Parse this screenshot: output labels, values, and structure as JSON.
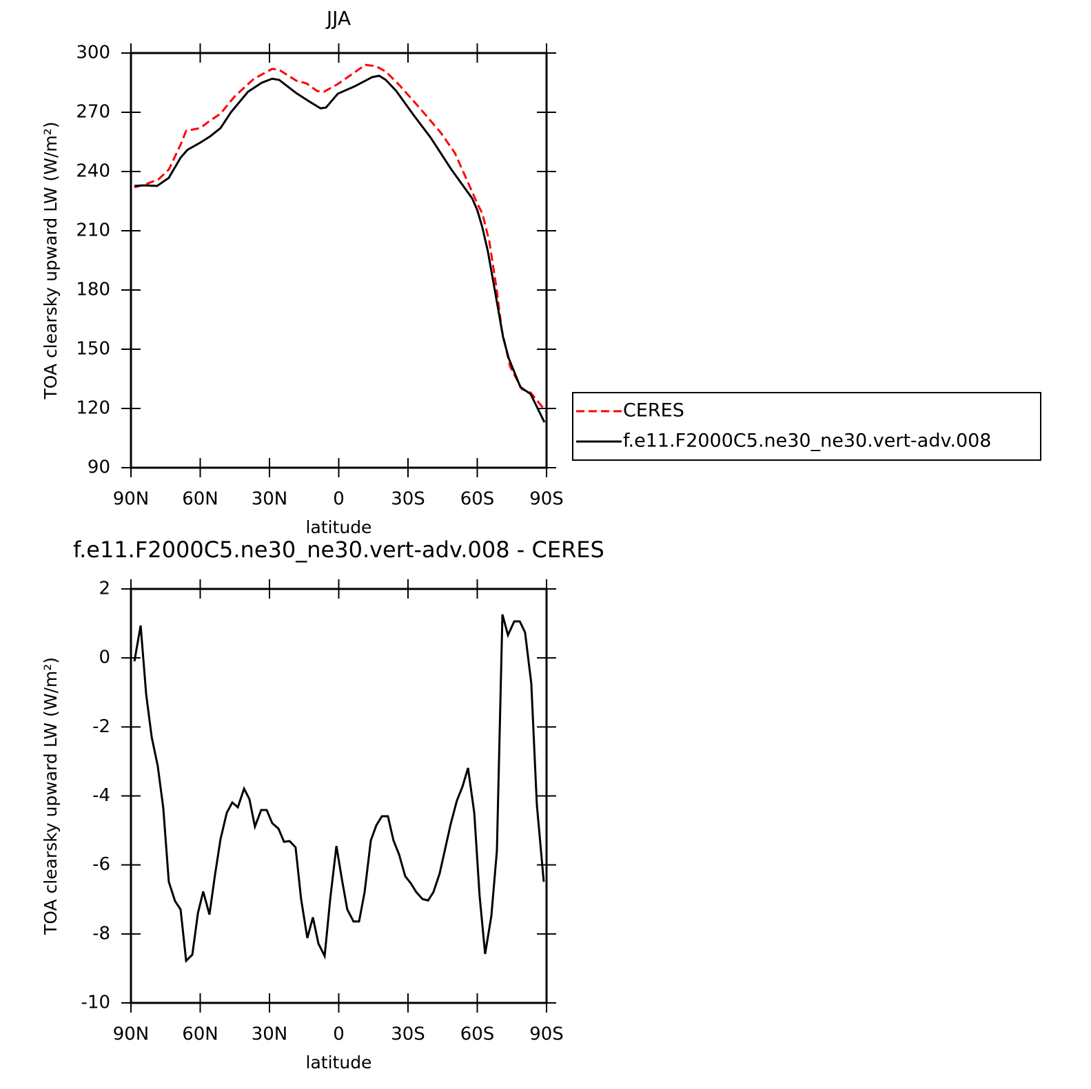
{
  "chart_data": [
    {
      "type": "line",
      "title": "JJA",
      "xlabel": "latitude",
      "ylabel": "TOA clearsky upward LW (W/m²)",
      "xlim": [
        90,
        -90
      ],
      "xticks": [
        {
          "value": 90,
          "label": "90N"
        },
        {
          "value": 60,
          "label": "60N"
        },
        {
          "value": 30,
          "label": "30N"
        },
        0,
        {
          "value": -30,
          "label": "30S"
        },
        {
          "value": -60,
          "label": "60S"
        },
        {
          "value": -90,
          "label": "90S"
        }
      ],
      "ylim": [
        90,
        300
      ],
      "yticks": [
        90,
        120,
        150,
        180,
        210,
        240,
        270,
        300
      ],
      "legend": "right",
      "series": [
        {
          "name": "CERES",
          "color": "#ff0000",
          "line_style": "dashed",
          "x": [
            88.5,
            84,
            78.1,
            73.6,
            68.5,
            66.1,
            60,
            55.7,
            51.2,
            45.1,
            36.7,
            28.8,
            25.8,
            18.4,
            13.9,
            9.4,
            6.4,
            0.4,
            -11.5,
            -16,
            -20.4,
            -26.4,
            -35.4,
            -44.3,
            -50.3,
            -60.1,
            -62.2,
            -65.2,
            -68.2,
            -70.6,
            -74.2,
            -79.3,
            -83.1,
            -89.7
          ],
          "values": [
            232,
            233.4,
            236,
            241,
            253.6,
            260.6,
            262,
            265.8,
            269.3,
            278,
            287,
            292,
            291.5,
            286,
            284.6,
            280.8,
            280.4,
            284.3,
            294,
            293.4,
            290.6,
            283.6,
            271.7,
            259.5,
            249.4,
            223.6,
            218.7,
            204.8,
            182,
            160,
            141.3,
            129.8,
            128,
            118.6
          ]
        },
        {
          "name": "f.e11.F2000C5.ne30_ne30.vert-adv.008",
          "color": "#000000",
          "line_style": "solid",
          "x": [
            88.5,
            84,
            78.7,
            73.6,
            68.5,
            65.5,
            60,
            55.7,
            51.2,
            46.7,
            39.3,
            33.3,
            28.8,
            25.8,
            18.4,
            12.4,
            7.9,
            5.5,
            0.4,
            -7,
            -14.5,
            -17.5,
            -20.4,
            -24.9,
            -32.4,
            -39.9,
            -48.8,
            -57.8,
            -60,
            -62.2,
            -64.6,
            -67,
            -69.4,
            -71.2,
            -73.6,
            -78.7,
            -83.1,
            -89.1
          ],
          "values": [
            232.7,
            233,
            232.7,
            236.8,
            247,
            251,
            254.6,
            257.8,
            262,
            270,
            280.4,
            285,
            287,
            286.4,
            279.7,
            275.2,
            272,
            272.4,
            279.4,
            283.2,
            287.8,
            288.5,
            286.4,
            280.8,
            268.6,
            257,
            241,
            226.4,
            220.5,
            211.7,
            199.5,
            183.8,
            168,
            156,
            145.5,
            130.8,
            127.3,
            113
          ]
        }
      ]
    },
    {
      "type": "line",
      "title": "f.e11.F2000C5.ne30_ne30.vert-adv.008 - CERES",
      "xlabel": "latitude",
      "ylabel": "TOA clearsky upward LW (W/m²)",
      "xlim": [
        90,
        -90
      ],
      "xticks": [
        {
          "value": 90,
          "label": "90N"
        },
        {
          "value": 60,
          "label": "60N"
        },
        {
          "value": 30,
          "label": "30N"
        },
        0,
        {
          "value": -30,
          "label": "30S"
        },
        {
          "value": -60,
          "label": "60S"
        },
        {
          "value": -90,
          "label": "90S"
        }
      ],
      "ylim": [
        -10,
        2
      ],
      "yticks": [
        -10,
        -8,
        -6,
        -4,
        -2,
        0,
        2
      ],
      "series": [
        {
          "color": "#000000",
          "line_style": "solid",
          "x": [
            88.5,
            85.8,
            83.4,
            81,
            78.4,
            76,
            73.6,
            70.9,
            68.5,
            66.1,
            63.4,
            61,
            58.7,
            56,
            53.6,
            51.2,
            48.5,
            46.1,
            43.7,
            41,
            38.7,
            36.3,
            33.6,
            31.2,
            28.8,
            26.1,
            23.7,
            21.3,
            18.7,
            16.3,
            13.6,
            11.2,
            8.8,
            6.1,
            3.7,
            1,
            -1.3,
            -3.7,
            -6.4,
            -8.8,
            -11.2,
            -13.9,
            -16.3,
            -18.7,
            -21.3,
            -23.7,
            -26.1,
            -28.8,
            -31.2,
            -33.6,
            -36.3,
            -38.7,
            -41,
            -43.7,
            -46.1,
            -48.5,
            -51.2,
            -53.6,
            -56,
            -58.7,
            -61,
            -63.4,
            -66.1,
            -68.5,
            -70.9,
            -73.3,
            -76,
            -78.4,
            -80.7,
            -83.4,
            -85.8,
            -88.8
          ],
          "values": [
            -0.1,
            0.94,
            -1.06,
            -2.3,
            -3.13,
            -4.35,
            -6.49,
            -7.05,
            -7.29,
            -8.78,
            -8.6,
            -7.4,
            -6.77,
            -7.44,
            -6.29,
            -5.25,
            -4.49,
            -4.19,
            -4.33,
            -3.79,
            -4.09,
            -4.89,
            -4.41,
            -4.41,
            -4.79,
            -4.95,
            -5.33,
            -5.31,
            -5.49,
            -6.99,
            -8.12,
            -7.52,
            -8.28,
            -8.64,
            -6.99,
            -5.45,
            -6.39,
            -7.29,
            -7.64,
            -7.64,
            -6.79,
            -5.29,
            -4.85,
            -4.59,
            -4.59,
            -5.29,
            -5.69,
            -6.33,
            -6.53,
            -6.79,
            -6.99,
            -7.03,
            -6.79,
            -6.25,
            -5.53,
            -4.81,
            -4.13,
            -3.73,
            -3.19,
            -4.49,
            -6.89,
            -8.58,
            -7.48,
            -5.59,
            1.26,
            0.66,
            1.06,
            1.06,
            0.74,
            -0.74,
            -4.25,
            -6.49
          ]
        }
      ]
    }
  ]
}
